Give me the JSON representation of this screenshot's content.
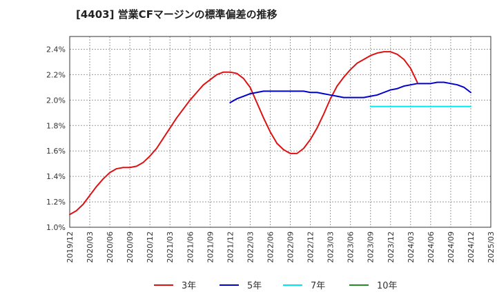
{
  "chart_data": {
    "type": "line",
    "title": "[4403]  営業CFマージンの標準偏差の推移",
    "xlabel": "",
    "ylabel": "",
    "ylim": [
      1.0,
      2.5
    ],
    "y_ticks": [
      "1.0%",
      "1.2%",
      "1.4%",
      "1.6%",
      "1.8%",
      "2.0%",
      "2.2%",
      "2.4%"
    ],
    "y_tick_values": [
      1.0,
      1.2,
      1.4,
      1.6,
      1.8,
      2.0,
      2.2,
      2.4
    ],
    "x_ticks": [
      "2019/12",
      "2020/03",
      "2020/06",
      "2020/09",
      "2020/12",
      "2021/03",
      "2021/06",
      "2021/09",
      "2021/12",
      "2022/03",
      "2022/06",
      "2022/09",
      "2022/12",
      "2023/03",
      "2023/06",
      "2023/09",
      "2023/12",
      "2024/03",
      "2024/06",
      "2024/09",
      "2024/12",
      "2025/03"
    ],
    "grid": true,
    "legend_position": "bottom",
    "series": [
      {
        "name": "3年",
        "color": "#dd1111",
        "points": [
          [
            0,
            1.1
          ],
          [
            1,
            1.13
          ],
          [
            2,
            1.18
          ],
          [
            3,
            1.25
          ],
          [
            4,
            1.32
          ],
          [
            5,
            1.38
          ],
          [
            6,
            1.43
          ],
          [
            7,
            1.46
          ],
          [
            8,
            1.47
          ],
          [
            9,
            1.47
          ],
          [
            10,
            1.48
          ],
          [
            11,
            1.51
          ],
          [
            12,
            1.56
          ],
          [
            13,
            1.62
          ],
          [
            14,
            1.7
          ],
          [
            15,
            1.78
          ],
          [
            16,
            1.86
          ],
          [
            17,
            1.93
          ],
          [
            18,
            2.0
          ],
          [
            19,
            2.06
          ],
          [
            20,
            2.12
          ],
          [
            21,
            2.16
          ],
          [
            22,
            2.2
          ],
          [
            23,
            2.22
          ],
          [
            24,
            2.22
          ],
          [
            25,
            2.21
          ],
          [
            26,
            2.17
          ],
          [
            27,
            2.1
          ],
          [
            28,
            1.98
          ],
          [
            29,
            1.86
          ],
          [
            30,
            1.75
          ],
          [
            31,
            1.66
          ],
          [
            32,
            1.61
          ],
          [
            33,
            1.58
          ],
          [
            34,
            1.58
          ],
          [
            35,
            1.62
          ],
          [
            36,
            1.69
          ],
          [
            37,
            1.78
          ],
          [
            38,
            1.89
          ],
          [
            39,
            2.01
          ],
          [
            40,
            2.11
          ],
          [
            41,
            2.18
          ],
          [
            42,
            2.24
          ],
          [
            43,
            2.29
          ],
          [
            44,
            2.32
          ],
          [
            45,
            2.35
          ],
          [
            46,
            2.37
          ],
          [
            47,
            2.38
          ],
          [
            48,
            2.38
          ],
          [
            49,
            2.36
          ],
          [
            50,
            2.32
          ],
          [
            51,
            2.25
          ],
          [
            52,
            2.14
          ]
        ]
      },
      {
        "name": "5年",
        "color": "#0000cc",
        "points": [
          [
            24,
            1.98
          ],
          [
            25,
            2.01
          ],
          [
            26,
            2.03
          ],
          [
            27,
            2.05
          ],
          [
            28,
            2.06
          ],
          [
            29,
            2.07
          ],
          [
            30,
            2.07
          ],
          [
            31,
            2.07
          ],
          [
            32,
            2.07
          ],
          [
            33,
            2.07
          ],
          [
            34,
            2.07
          ],
          [
            35,
            2.07
          ],
          [
            36,
            2.06
          ],
          [
            37,
            2.06
          ],
          [
            38,
            2.05
          ],
          [
            39,
            2.04
          ],
          [
            40,
            2.03
          ],
          [
            41,
            2.02
          ],
          [
            42,
            2.02
          ],
          [
            43,
            2.02
          ],
          [
            44,
            2.02
          ],
          [
            45,
            2.03
          ],
          [
            46,
            2.04
          ],
          [
            47,
            2.06
          ],
          [
            48,
            2.08
          ],
          [
            49,
            2.09
          ],
          [
            50,
            2.11
          ],
          [
            51,
            2.12
          ],
          [
            52,
            2.13
          ],
          [
            53,
            2.13
          ],
          [
            54,
            2.13
          ],
          [
            55,
            2.14
          ],
          [
            56,
            2.14
          ],
          [
            57,
            2.13
          ],
          [
            58,
            2.12
          ],
          [
            59,
            2.1
          ],
          [
            60,
            2.06
          ]
        ]
      },
      {
        "name": "7年",
        "color": "#00e5ee",
        "points": [
          [
            45,
            1.95
          ],
          [
            48,
            1.95
          ],
          [
            51,
            1.95
          ],
          [
            54,
            1.95
          ],
          [
            57,
            1.95
          ],
          [
            60,
            1.95
          ]
        ]
      },
      {
        "name": "10年",
        "color": "#228b22",
        "points": []
      }
    ]
  }
}
